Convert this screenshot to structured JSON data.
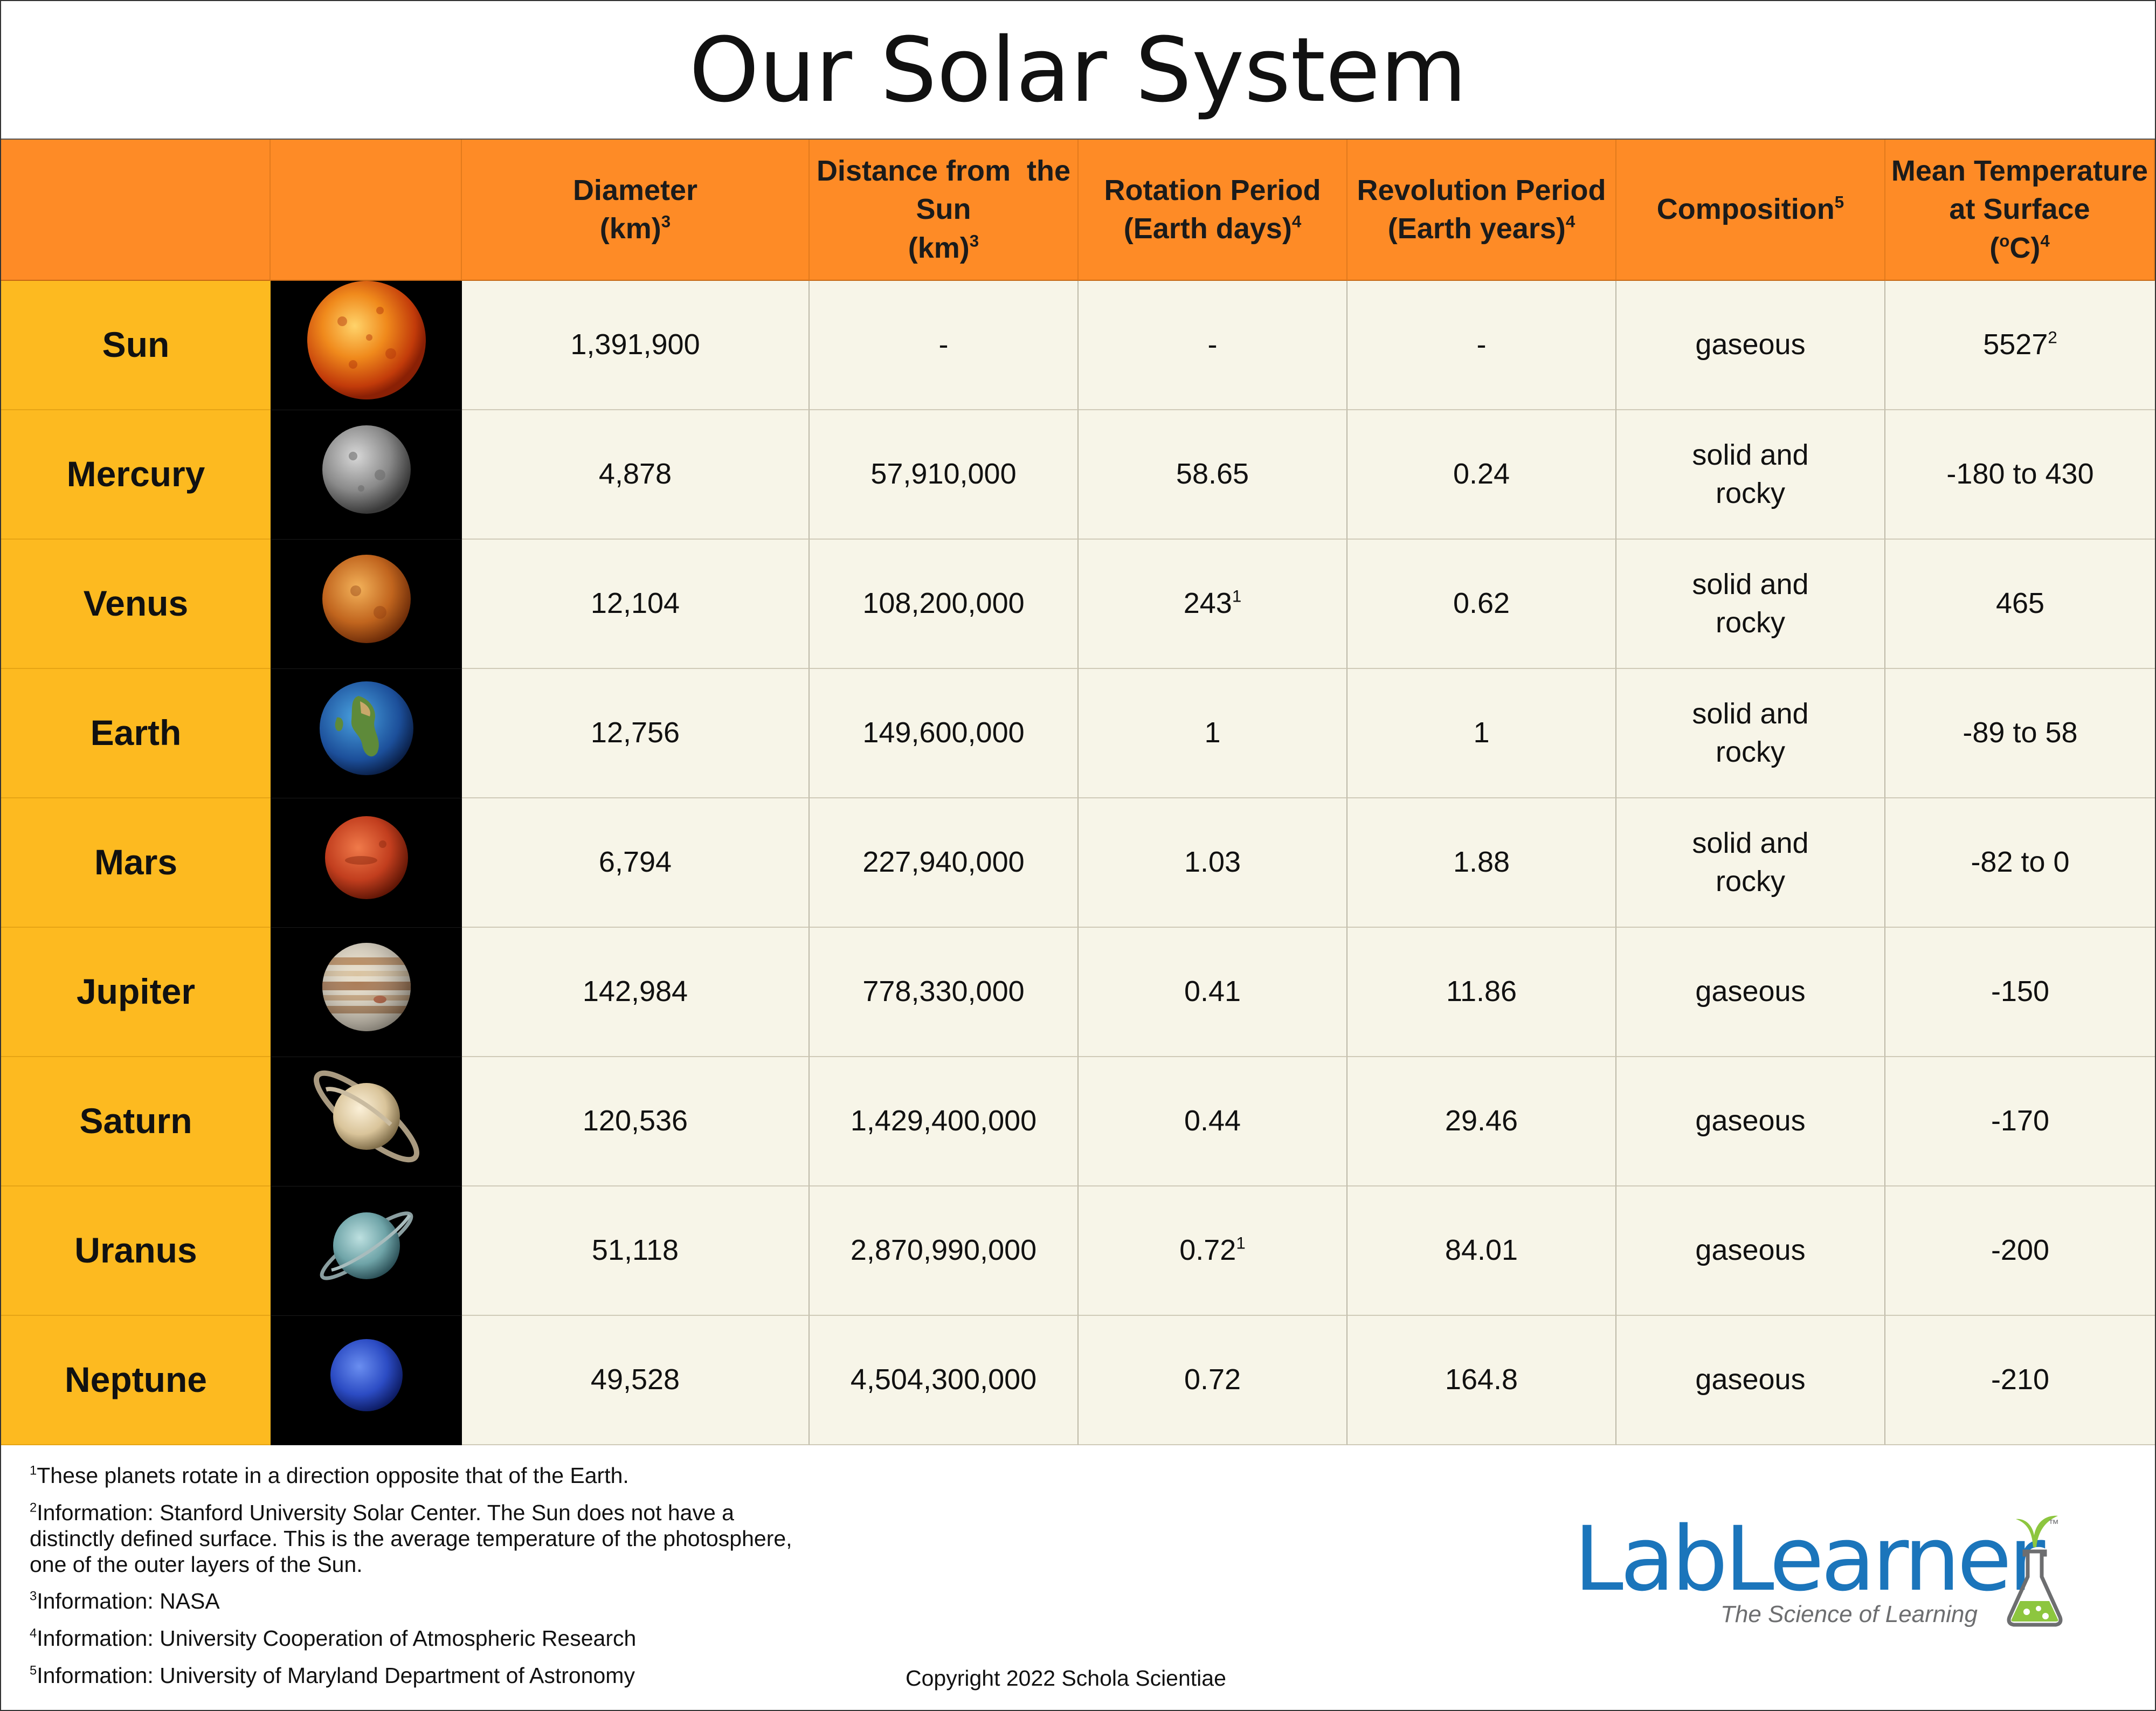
{
  "title": "Our Solar System",
  "headers": {
    "diameter": [
      "Diameter",
      "(km)",
      "3"
    ],
    "distance": [
      "Distance from  the",
      "Sun",
      "(km)",
      "3"
    ],
    "rotation": [
      "Rotation Period",
      "(Earth days)",
      "4"
    ],
    "revolution": [
      "Revolution Period",
      "(Earth years)",
      "4"
    ],
    "composition": [
      "Composition",
      "5"
    ],
    "temperature": [
      "Mean Temperature",
      "at Surface",
      "(",
      "o",
      "C)",
      "4"
    ]
  },
  "rows": [
    {
      "name": "Sun",
      "diameter": "1,391,900",
      "distance": "-",
      "rotation": "-",
      "rotation_sup": "",
      "revolution": "-",
      "composition": "gaseous",
      "temperature": "5527",
      "temperature_sup": "2"
    },
    {
      "name": "Mercury",
      "diameter": "4,878",
      "distance": "57,910,000",
      "rotation": "58.65",
      "rotation_sup": "",
      "revolution": "0.24",
      "composition": "solid and rocky",
      "temperature": "-180 to 430",
      "temperature_sup": ""
    },
    {
      "name": "Venus",
      "diameter": "12,104",
      "distance": "108,200,000",
      "rotation": "243",
      "rotation_sup": "1",
      "revolution": "0.62",
      "composition": "solid and rocky",
      "temperature": "465",
      "temperature_sup": ""
    },
    {
      "name": "Earth",
      "diameter": "12,756",
      "distance": "149,600,000",
      "rotation": "1",
      "rotation_sup": "",
      "revolution": "1",
      "composition": "solid and rocky",
      "temperature": "-89 to 58",
      "temperature_sup": ""
    },
    {
      "name": "Mars",
      "diameter": "6,794",
      "distance": "227,940,000",
      "rotation": "1.03",
      "rotation_sup": "",
      "revolution": "1.88",
      "composition": "solid and rocky",
      "temperature": "-82 to 0",
      "temperature_sup": ""
    },
    {
      "name": "Jupiter",
      "diameter": "142,984",
      "distance": "778,330,000",
      "rotation": "0.41",
      "rotation_sup": "",
      "revolution": "11.86",
      "composition": "gaseous",
      "temperature": "-150",
      "temperature_sup": ""
    },
    {
      "name": "Saturn",
      "diameter": "120,536",
      "distance": "1,429,400,000",
      "rotation": "0.44",
      "rotation_sup": "",
      "revolution": "29.46",
      "composition": "gaseous",
      "temperature": "-170",
      "temperature_sup": ""
    },
    {
      "name": "Uranus",
      "diameter": "51,118",
      "distance": "2,870,990,000",
      "rotation": "0.72",
      "rotation_sup": "1",
      "revolution": "84.01",
      "composition": "gaseous",
      "temperature": "-200",
      "temperature_sup": ""
    },
    {
      "name": "Neptune",
      "diameter": "49,528",
      "distance": "4,504,300,000",
      "rotation": "0.72",
      "rotation_sup": "",
      "revolution": "164.8",
      "composition": "gaseous",
      "temperature": "-210",
      "temperature_sup": ""
    }
  ],
  "footnotes": [
    {
      "num": "1",
      "text": "These planets rotate in a direction opposite that of the Earth."
    },
    {
      "num": "2",
      "text": "Information: Stanford University Solar Center. The Sun does not have a",
      "text2": "distinctly defined surface. This is the average temperature of the photosphere,",
      "text3": "one of the outer layers of the Sun."
    },
    {
      "num": "3",
      "text": "Information: NASA"
    },
    {
      "num": "4",
      "text": "Information: University Cooperation of Atmospheric Research"
    },
    {
      "num": "5",
      "text": "Information: University of Maryland Department of Astronomy"
    }
  ],
  "copyright": "Copyright 2022 Schola Scientiae",
  "logo": {
    "lab": "Lab",
    "learner": "Learner",
    "tagline": "The Science of Learning",
    "tm": "™"
  },
  "colors": {
    "header_orange": "#fe8b26",
    "name_yellow": "#fdba20",
    "cell_cream": "#f7f5e8",
    "logo_blue": "#1b75bb",
    "logo_green": "#8dc63f"
  }
}
